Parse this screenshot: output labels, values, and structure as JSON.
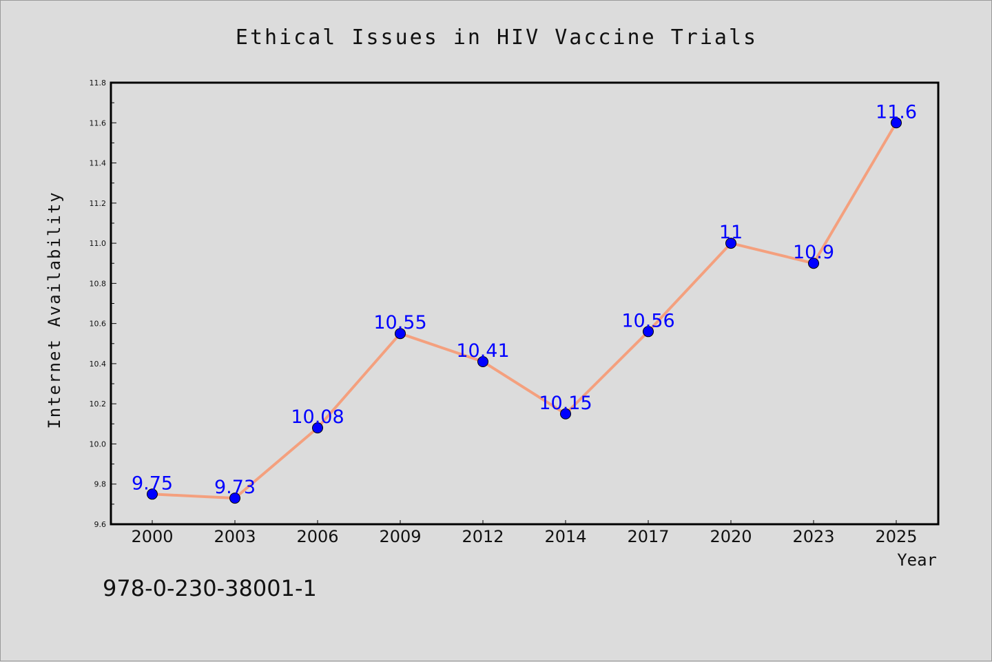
{
  "chart_data": {
    "type": "line",
    "title": "Ethical Issues in HIV Vaccine Trials",
    "xlabel": "Year",
    "ylabel": "Internet Availability",
    "categories": [
      "2000",
      "2003",
      "2006",
      "2009",
      "2012",
      "2014",
      "2017",
      "2020",
      "2023",
      "2025"
    ],
    "values": [
      9.75,
      9.73,
      10.08,
      10.55,
      10.41,
      10.15,
      10.56,
      11,
      10.9,
      11.6
    ],
    "data_labels": [
      "9.75",
      "9.73",
      "10.08",
      "10.55",
      "10.41",
      "10.15",
      "10.56",
      "11",
      "10.9",
      "11.6"
    ],
    "ylim": [
      9.6,
      11.8
    ],
    "yticks": [
      "9.6",
      "9.8",
      "10.0",
      "10.2",
      "10.4",
      "10.6",
      "10.8",
      "11.0",
      "11.2",
      "11.4",
      "11.6",
      "11.8"
    ],
    "grid": false,
    "line_color": "#f4a07e",
    "marker_color": "#0000ff",
    "label_color": "#0000ff"
  },
  "footer": {
    "isbn": "978-0-230-38001-1"
  }
}
